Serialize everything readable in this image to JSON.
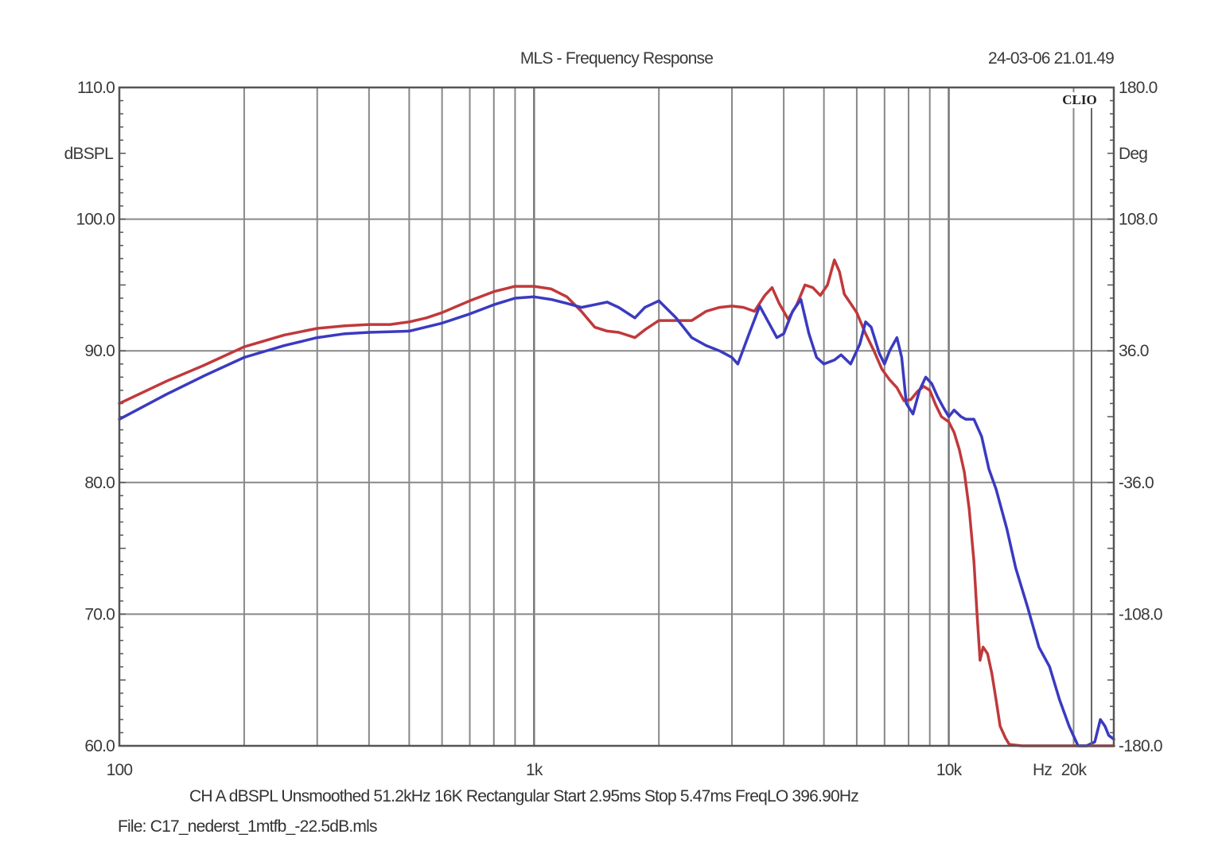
{
  "chart_data": {
    "type": "line",
    "title": "MLS - Frequency Response",
    "timestamp": "24-03-06 21.01.49",
    "brand": "CLIO",
    "x_scale": "log",
    "xlim": [
      100,
      25000
    ],
    "ylim_left": [
      60,
      110
    ],
    "ylim_right": [
      -180,
      180
    ],
    "y_unit_left": "dBSPL",
    "y_unit_right": "Deg",
    "x_unit": "Hz",
    "x_ticks": [
      {
        "value": 100,
        "label": "100"
      },
      {
        "value": 1000,
        "label": "1k"
      },
      {
        "value": 10000,
        "label": "10k"
      },
      {
        "value": 20000,
        "label": "20k"
      }
    ],
    "y_ticks_left": [
      "110.0",
      "100.0",
      "90.0",
      "80.0",
      "70.0",
      "60.0"
    ],
    "y_ticks_right": [
      "180.0",
      "108.0",
      "36.0",
      "-36.0",
      "-108.0",
      "-180.0"
    ],
    "grid": true,
    "series": [
      {
        "color": "#c0393b",
        "points": [
          [
            100,
            86.0
          ],
          [
            130,
            87.7
          ],
          [
            160,
            88.9
          ],
          [
            200,
            90.3
          ],
          [
            250,
            91.2
          ],
          [
            300,
            91.7
          ],
          [
            350,
            91.9
          ],
          [
            400,
            92.0
          ],
          [
            450,
            92.0
          ],
          [
            500,
            92.2
          ],
          [
            550,
            92.5
          ],
          [
            600,
            92.9
          ],
          [
            700,
            93.8
          ],
          [
            800,
            94.5
          ],
          [
            900,
            94.9
          ],
          [
            1000,
            94.9
          ],
          [
            1100,
            94.7
          ],
          [
            1200,
            94.1
          ],
          [
            1300,
            93.0
          ],
          [
            1400,
            91.8
          ],
          [
            1500,
            91.5
          ],
          [
            1600,
            91.4
          ],
          [
            1750,
            91.0
          ],
          [
            1850,
            91.6
          ],
          [
            2000,
            92.3
          ],
          [
            2200,
            92.3
          ],
          [
            2400,
            92.3
          ],
          [
            2600,
            93.0
          ],
          [
            2800,
            93.3
          ],
          [
            3000,
            93.4
          ],
          [
            3200,
            93.3
          ],
          [
            3400,
            93.0
          ],
          [
            3600,
            94.2
          ],
          [
            3750,
            94.8
          ],
          [
            3900,
            93.6
          ],
          [
            4100,
            92.4
          ],
          [
            4300,
            93.5
          ],
          [
            4500,
            95.0
          ],
          [
            4700,
            94.8
          ],
          [
            4900,
            94.2
          ],
          [
            5100,
            95.0
          ],
          [
            5300,
            96.9
          ],
          [
            5450,
            96.0
          ],
          [
            5600,
            94.3
          ],
          [
            5800,
            93.6
          ],
          [
            6000,
            92.9
          ],
          [
            6300,
            91.3
          ],
          [
            6600,
            90.0
          ],
          [
            6900,
            88.6
          ],
          [
            7200,
            87.8
          ],
          [
            7500,
            87.2
          ],
          [
            7800,
            86.2
          ],
          [
            8100,
            86.3
          ],
          [
            8400,
            86.9
          ],
          [
            8700,
            87.3
          ],
          [
            9000,
            87.0
          ],
          [
            9300,
            85.9
          ],
          [
            9600,
            85.0
          ],
          [
            10000,
            84.6
          ],
          [
            10300,
            83.8
          ],
          [
            10600,
            82.5
          ],
          [
            10900,
            80.8
          ],
          [
            11200,
            78.0
          ],
          [
            11500,
            74.0
          ],
          [
            11700,
            70.0
          ],
          [
            11900,
            66.5
          ],
          [
            12100,
            67.5
          ],
          [
            12400,
            67.0
          ],
          [
            12700,
            65.5
          ],
          [
            13000,
            63.5
          ],
          [
            13300,
            61.5
          ],
          [
            13700,
            60.6
          ],
          [
            14000,
            60.1
          ],
          [
            15000,
            60.0
          ],
          [
            18000,
            60.0
          ],
          [
            20000,
            60.0
          ],
          [
            25000,
            60.0
          ]
        ]
      },
      {
        "color": "#3a3ac0",
        "points": [
          [
            100,
            84.8
          ],
          [
            130,
            86.7
          ],
          [
            160,
            88.1
          ],
          [
            200,
            89.5
          ],
          [
            250,
            90.4
          ],
          [
            300,
            91.0
          ],
          [
            350,
            91.3
          ],
          [
            400,
            91.4
          ],
          [
            500,
            91.5
          ],
          [
            600,
            92.1
          ],
          [
            700,
            92.8
          ],
          [
            800,
            93.5
          ],
          [
            900,
            94.0
          ],
          [
            1000,
            94.1
          ],
          [
            1100,
            93.9
          ],
          [
            1200,
            93.6
          ],
          [
            1300,
            93.3
          ],
          [
            1400,
            93.5
          ],
          [
            1500,
            93.7
          ],
          [
            1600,
            93.3
          ],
          [
            1750,
            92.5
          ],
          [
            1850,
            93.3
          ],
          [
            2000,
            93.8
          ],
          [
            2200,
            92.5
          ],
          [
            2400,
            91.0
          ],
          [
            2600,
            90.4
          ],
          [
            2800,
            90.0
          ],
          [
            3000,
            89.5
          ],
          [
            3100,
            89.0
          ],
          [
            3300,
            91.3
          ],
          [
            3500,
            93.4
          ],
          [
            3700,
            92.0
          ],
          [
            3850,
            91.0
          ],
          [
            4000,
            91.3
          ],
          [
            4200,
            93.0
          ],
          [
            4400,
            93.9
          ],
          [
            4600,
            91.3
          ],
          [
            4800,
            89.5
          ],
          [
            5000,
            89.0
          ],
          [
            5300,
            89.3
          ],
          [
            5500,
            89.7
          ],
          [
            5800,
            89.0
          ],
          [
            6100,
            90.5
          ],
          [
            6300,
            92.2
          ],
          [
            6500,
            91.8
          ],
          [
            6800,
            89.8
          ],
          [
            7000,
            89.0
          ],
          [
            7200,
            90.0
          ],
          [
            7500,
            91.0
          ],
          [
            7700,
            89.5
          ],
          [
            7900,
            86.0
          ],
          [
            8200,
            85.2
          ],
          [
            8500,
            87.0
          ],
          [
            8800,
            88.0
          ],
          [
            9100,
            87.5
          ],
          [
            9400,
            86.5
          ],
          [
            9700,
            85.7
          ],
          [
            10000,
            85.0
          ],
          [
            10300,
            85.5
          ],
          [
            10700,
            85.0
          ],
          [
            11000,
            84.8
          ],
          [
            11500,
            84.8
          ],
          [
            12000,
            83.5
          ],
          [
            12500,
            81.0
          ],
          [
            13000,
            79.5
          ],
          [
            13800,
            76.5
          ],
          [
            14500,
            73.5
          ],
          [
            15500,
            70.5
          ],
          [
            16500,
            67.5
          ],
          [
            17500,
            66.0
          ],
          [
            18500,
            63.5
          ],
          [
            19500,
            61.5
          ],
          [
            20500,
            60.0
          ],
          [
            21500,
            60.0
          ],
          [
            22500,
            60.3
          ],
          [
            23200,
            62.0
          ],
          [
            23800,
            61.5
          ],
          [
            24300,
            60.8
          ],
          [
            25000,
            60.5
          ]
        ]
      }
    ]
  },
  "footer": {
    "line1": "CH A   dBSPL   Unsmoothed   51.2kHz   16K   Rectangular   Start 2.95ms     Stop 5.47ms     FreqLO 396.90Hz",
    "line2": "File: C17_nederst_1mtfb_-22.5dB.mls"
  }
}
